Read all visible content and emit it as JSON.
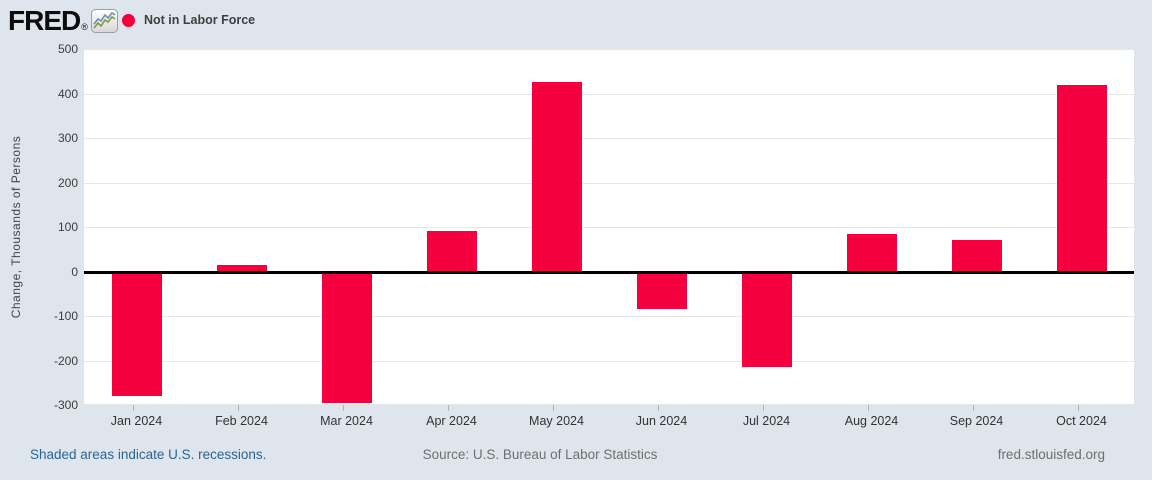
{
  "header": {
    "logo_text": "FRED",
    "registered_mark": "®",
    "legend": {
      "label": "Not in Labor Force"
    }
  },
  "chart_data": {
    "type": "bar",
    "series_name": "Not in Labor Force",
    "categories": [
      "Jan 2024",
      "Feb 2024",
      "Mar 2024",
      "Apr 2024",
      "May 2024",
      "Jun 2024",
      "Jul 2024",
      "Aug 2024",
      "Sep 2024",
      "Oct 2024"
    ],
    "values": [
      -280,
      15,
      -295,
      90,
      425,
      -85,
      -215,
      85,
      70,
      420
    ],
    "ylabel": "Change, Thousands of Persons",
    "ylim": [
      -300,
      500
    ],
    "yticks": [
      500,
      400,
      300,
      200,
      100,
      0,
      -100,
      -200,
      -300
    ],
    "bar_color": "#f4003e",
    "grid": true,
    "zero_line": true,
    "legend_position": "top-left"
  },
  "footer": {
    "recessions_note": "Shaded areas indicate U.S. recessions.",
    "source": "Source: U.S. Bureau of Labor Statistics",
    "site": "fred.stlouisfed.org"
  }
}
